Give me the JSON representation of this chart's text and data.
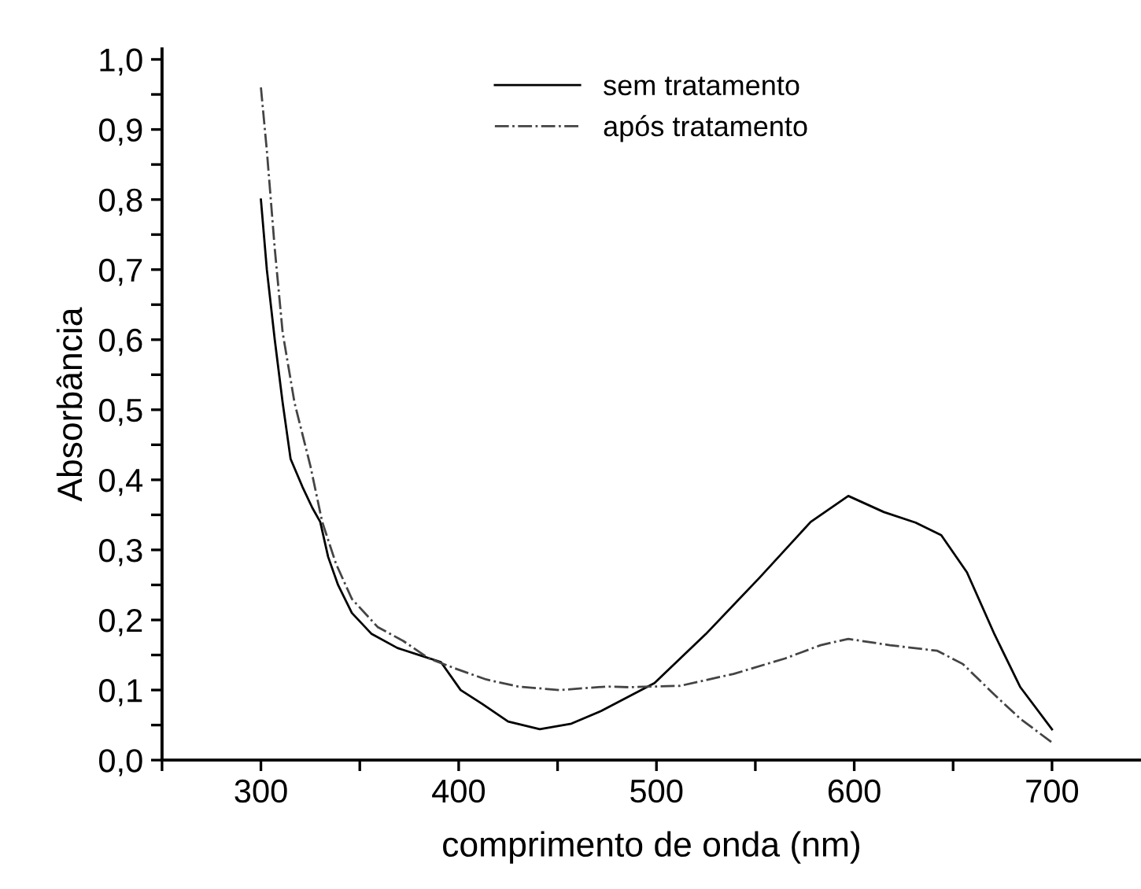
{
  "chart_data": {
    "type": "line",
    "xlabel": "comprimento de onda (nm)",
    "ylabel": "Absorbância",
    "xlim": [
      250,
      745
    ],
    "ylim": [
      0,
      1.015
    ],
    "xticks": [
      {
        "value": 250,
        "label": null
      },
      300,
      {
        "value": 350,
        "label": null
      },
      400,
      {
        "value": 450,
        "label": null
      },
      500,
      {
        "value": 550,
        "label": null
      },
      600,
      {
        "value": 650,
        "label": null
      },
      700
    ],
    "yticks": [
      {
        "value": 0,
        "label": "0,0"
      },
      {
        "value": 0.05,
        "label": null
      },
      {
        "value": 0.1,
        "label": "0,1"
      },
      {
        "value": 0.15,
        "label": null
      },
      {
        "value": 0.2,
        "label": "0,2"
      },
      {
        "value": 0.25,
        "label": null
      },
      {
        "value": 0.3,
        "label": "0,3"
      },
      {
        "value": 0.35,
        "label": null
      },
      {
        "value": 0.4,
        "label": "0,4"
      },
      {
        "value": 0.45,
        "label": null
      },
      {
        "value": 0.5,
        "label": "0,5"
      },
      {
        "value": 0.55,
        "label": null
      },
      {
        "value": 0.6,
        "label": "0,6"
      },
      {
        "value": 0.65,
        "label": null
      },
      {
        "value": 0.7,
        "label": "0,7"
      },
      {
        "value": 0.75,
        "label": null
      },
      {
        "value": 0.8,
        "label": "0,8"
      },
      {
        "value": 0.85,
        "label": null
      },
      {
        "value": 0.9,
        "label": "0,9"
      },
      {
        "value": 0.95,
        "label": null
      },
      {
        "value": 1.0,
        "label": "1,0"
      }
    ],
    "grid": false,
    "legend": "top",
    "marker": "none",
    "series": [
      {
        "name": "sem tratamento",
        "color": "#000000",
        "line_style": "solid",
        "x": [
          300,
          303,
          307,
          311,
          315,
          321,
          326,
          330,
          334,
          339,
          346,
          356,
          369,
          380,
          391,
          401,
          412,
          425,
          441,
          457,
          472,
          499,
          525,
          552,
          578,
          597,
          615,
          631,
          644,
          657,
          671,
          684,
          700
        ],
        "values": [
          0.8,
          0.7,
          0.6,
          0.51,
          0.43,
          0.39,
          0.36,
          0.34,
          0.29,
          0.25,
          0.21,
          0.18,
          0.16,
          0.15,
          0.14,
          0.1,
          0.08,
          0.055,
          0.044,
          0.052,
          0.07,
          0.11,
          0.18,
          0.26,
          0.34,
          0.377,
          0.354,
          0.339,
          0.321,
          0.268,
          0.179,
          0.104,
          0.044
        ]
      },
      {
        "name": "após tratamento",
        "color": "#444444",
        "line_style": "dashdot",
        "x": [
          300,
          303,
          307,
          311,
          317,
          325,
          331,
          338,
          346,
          359,
          372,
          385,
          399,
          414,
          430,
          451,
          475,
          486,
          512,
          539,
          565,
          583,
          597,
          618,
          642,
          655,
          671,
          684,
          700
        ],
        "values": [
          0.96,
          0.87,
          0.73,
          0.61,
          0.51,
          0.42,
          0.34,
          0.28,
          0.23,
          0.19,
          0.17,
          0.145,
          0.13,
          0.115,
          0.105,
          0.1,
          0.105,
          0.104,
          0.106,
          0.123,
          0.145,
          0.164,
          0.173,
          0.164,
          0.156,
          0.137,
          0.093,
          0.059,
          0.025
        ]
      }
    ]
  }
}
